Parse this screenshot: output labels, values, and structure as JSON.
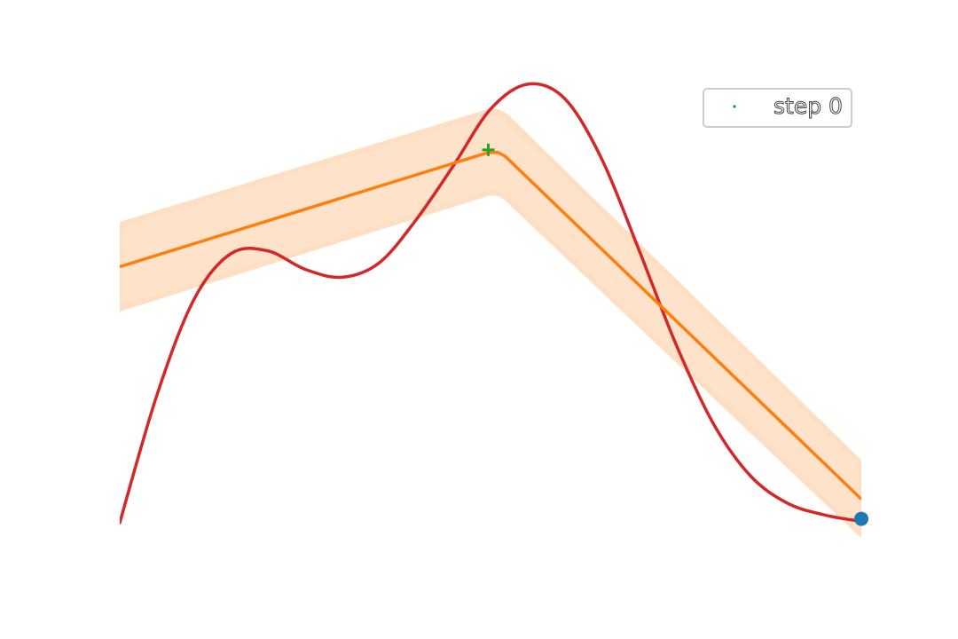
{
  "chart_data": {
    "type": "line",
    "title": "",
    "xlabel": "",
    "ylabel": "",
    "xlim": [
      0,
      1
    ],
    "ylim": [
      -1.7,
      1.95
    ],
    "grid": false,
    "axes_visible": false,
    "legend": {
      "placement": "top-right",
      "entries": [
        "step 0"
      ]
    },
    "colors": {
      "objective": "#d62728",
      "mean": "#ff7f0e",
      "band": "#ffdfc4",
      "observation": "#1f77b4",
      "next_point": "#2ca02c",
      "legend_marker": "#1f77b4"
    },
    "series": [
      {
        "role": "objective",
        "x": [
          0.0,
          0.05,
          0.1,
          0.15,
          0.2,
          0.25,
          0.3,
          0.35,
          0.4,
          0.45,
          0.5,
          0.55,
          0.6,
          0.65,
          0.7,
          0.75,
          0.8,
          0.85,
          0.9,
          0.95,
          1.0
        ],
        "y": [
          -1.45,
          -0.48,
          0.25,
          0.6,
          0.62,
          0.48,
          0.42,
          0.53,
          0.86,
          1.27,
          1.7,
          1.89,
          1.78,
          1.32,
          0.63,
          -0.09,
          -0.69,
          -1.09,
          -1.3,
          -1.39,
          -1.44
        ]
      },
      {
        "role": "mean",
        "x": [
          0.0,
          0.497,
          0.51,
          0.52,
          1.0
        ],
        "y": [
          0.5,
          1.37,
          1.37,
          1.34,
          -1.27
        ]
      },
      {
        "role": "band_upper",
        "x": [
          0.0,
          0.497,
          0.51,
          0.52,
          1.0
        ],
        "y": [
          0.82,
          1.68,
          1.68,
          1.65,
          -1.0
        ]
      },
      {
        "role": "band_lower",
        "x": [
          0.0,
          0.497,
          0.51,
          0.52,
          1.0
        ],
        "y": [
          0.18,
          1.06,
          1.06,
          1.03,
          -1.54
        ]
      }
    ],
    "points": [
      {
        "role": "observation",
        "marker": "circle",
        "x": 1.0,
        "y": -1.42
      },
      {
        "role": "next_point",
        "marker": "plus",
        "x": 0.497,
        "y": 1.39
      }
    ]
  }
}
